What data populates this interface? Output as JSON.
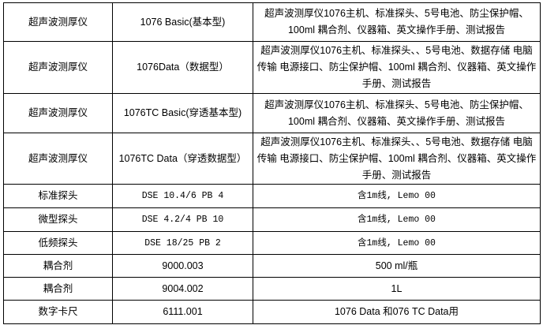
{
  "rows": [
    {
      "name": "超声波测厚仪",
      "model": "1076 Basic(基本型)",
      "desc": "超声波测厚仪1076主机、标准探头、5号电池、防尘保护帽、100ml 耦合剂、仪器箱、英文操作手册、测试报告"
    },
    {
      "name": "超声波测厚仪",
      "model": "1076Data（数据型）",
      "desc": "超声波测厚仪1076主机、标准探头、、5号电池、数据存储 电脑传输 电源接口、防尘保护帽、100ml 耦合剂、仪器箱、英文操作手册、测试报告"
    },
    {
      "name": "超声波测厚仪",
      "model": "1076TC Basic(穿透基本型)",
      "desc": "超声波测厚仪1076主机、标准探头、5号电池、防尘保护帽、100ml 耦合剂、仪器箱、英文操作手册、测试报告"
    },
    {
      "name": "超声波测厚仪",
      "model": "1076TC Data（穿透数据型）",
      "desc": "超声波测厚仪1076主机、标准探头、、5号电池、数据存储 电脑传输 电源接口、防尘保护帽、100ml 耦合剂、仪器箱、英文操作手册、测试报告"
    },
    {
      "name": "标准探头",
      "model": "DSE 10.4/6 PB 4",
      "desc": "含1m线, Lemo 00"
    },
    {
      "name": "微型探头",
      "model": "DSE 4.2/4 PB 10",
      "desc": "含1m线, Lemo 00"
    },
    {
      "name": "低频探头",
      "model": "DSE 18/25 PB 2",
      "desc": "含1m线, Lemo 00"
    },
    {
      "name": "耦合剂",
      "model": "9000.003",
      "desc": "500 ml/瓶"
    },
    {
      "name": "耦合剂",
      "model": "9004.002",
      "desc": "1L"
    },
    {
      "name": "数字卡尺",
      "model": "6111.001",
      "desc": "1076 Data 和076 TC Data用"
    }
  ]
}
